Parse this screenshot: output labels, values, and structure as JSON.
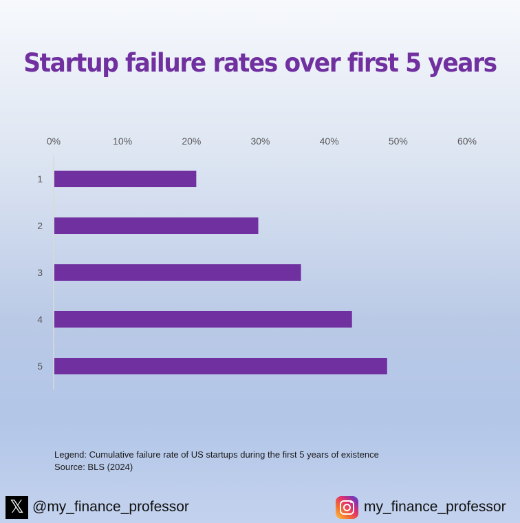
{
  "chart_data": {
    "type": "bar",
    "orientation": "horizontal",
    "title": "Startup failure rates over first 5 years",
    "categories": [
      "1",
      "2",
      "3",
      "4",
      "5"
    ],
    "values": [
      20.7,
      29.7,
      35.9,
      43.3,
      48.4
    ],
    "x_ticks": [
      "0%",
      "10%",
      "20%",
      "30%",
      "40%",
      "50%",
      "60%"
    ],
    "xlim": [
      0,
      60
    ],
    "x_axis_position": "top",
    "bar_color": "#7030a0",
    "grid": false
  },
  "legend_text": "Legend: Cumulative failure rate of US startups during the first 5 years of existence",
  "source_text": "Source: BLS (2024)",
  "social": {
    "x_handle": "@my_finance_professor",
    "x_icon": "x-logo-icon",
    "instagram_handle": "my_finance_professor",
    "instagram_icon": "instagram-icon"
  }
}
